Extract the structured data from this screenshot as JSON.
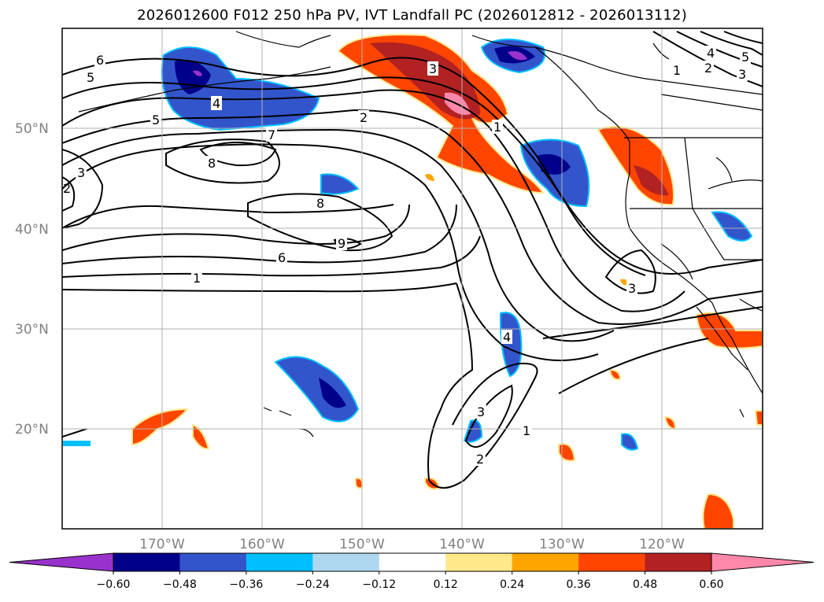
{
  "title": "2026012600 F012 250 hPa PV, IVT Landfall PC (2026012812 - 2026013112)",
  "map": {
    "lat_labels": [
      "50°N",
      "40°N",
      "30°N",
      "20°N"
    ],
    "lon_labels": [
      "170°W",
      "160°W",
      "150°W",
      "140°W",
      "130°W",
      "120°W"
    ],
    "contour_labels": [
      "6",
      "5",
      "4",
      "5",
      "7",
      "8",
      "3",
      "2",
      "8",
      "9",
      "6",
      "1",
      "2",
      "3",
      "1",
      "1",
      "2",
      "3",
      "4",
      "5",
      "3",
      "4",
      "3",
      "1",
      "2"
    ]
  },
  "colorbar": {
    "ticks": [
      "−0.60",
      "−0.48",
      "−0.36",
      "−0.24",
      "−0.12",
      "0.12",
      "0.24",
      "0.36",
      "0.48",
      "0.60"
    ],
    "colors": [
      "#9932cc",
      "#00008b",
      "#3355cc",
      "#00bfff",
      "#add8f0",
      "#ffffff",
      "#ffe88a",
      "#ffa500",
      "#ff4500",
      "#b22222",
      "#ff88aa",
      "#ff88aa"
    ]
  }
}
